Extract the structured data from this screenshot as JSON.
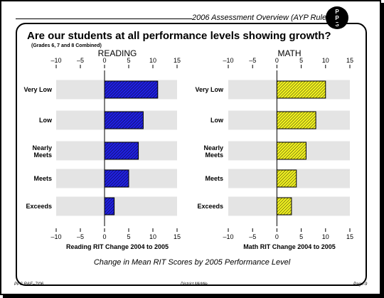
{
  "header": {
    "title": "2006 Assessment Overview (AYP Rules)",
    "logo_lines": [
      "P",
      "P",
      "S"
    ]
  },
  "title": "Are our students at all performance levels showing growth?",
  "subtitle": "(Grades 6, 7 and 8 Combined)",
  "caption": "Change in Mean RIT Scores by 2005 Performance Level",
  "footer": {
    "left": "PPS R&E–7/06",
    "center": "District Middle",
    "right": "Page-9"
  },
  "colors": {
    "reading_fill": "#2020e0",
    "math_fill": "#f0f020",
    "band": "#e4e4e4"
  },
  "chart_data": [
    {
      "type": "bar",
      "orientation": "horizontal",
      "title": "READING",
      "xlabel": "Reading RIT Change 2004 to 2005",
      "categories": [
        "Very Low",
        "Low",
        "Nearly Meets",
        "Meets",
        "Exceeds"
      ],
      "values": [
        11,
        8,
        7,
        5,
        2
      ],
      "xlim": [
        -10,
        15
      ],
      "ticks": [
        -10,
        -5,
        0,
        5,
        10,
        15
      ],
      "tick_labels": [
        "–10",
        "–5",
        "0",
        "5",
        "10",
        "15"
      ],
      "pattern": "hatched",
      "color": "#2020e0"
    },
    {
      "type": "bar",
      "orientation": "horizontal",
      "title": "MATH",
      "xlabel": "Math RIT Change 2004 to 2005",
      "categories": [
        "Very Low",
        "Low",
        "Nearly Meets",
        "Meets",
        "Exceeds"
      ],
      "values": [
        10,
        8,
        6,
        4,
        3
      ],
      "xlim": [
        -10,
        15
      ],
      "ticks": [
        -10,
        -5,
        0,
        5,
        10,
        15
      ],
      "tick_labels": [
        "–10",
        "–5",
        "0",
        "5",
        "10",
        "15"
      ],
      "pattern": "hatched",
      "color": "#f0f020"
    }
  ]
}
